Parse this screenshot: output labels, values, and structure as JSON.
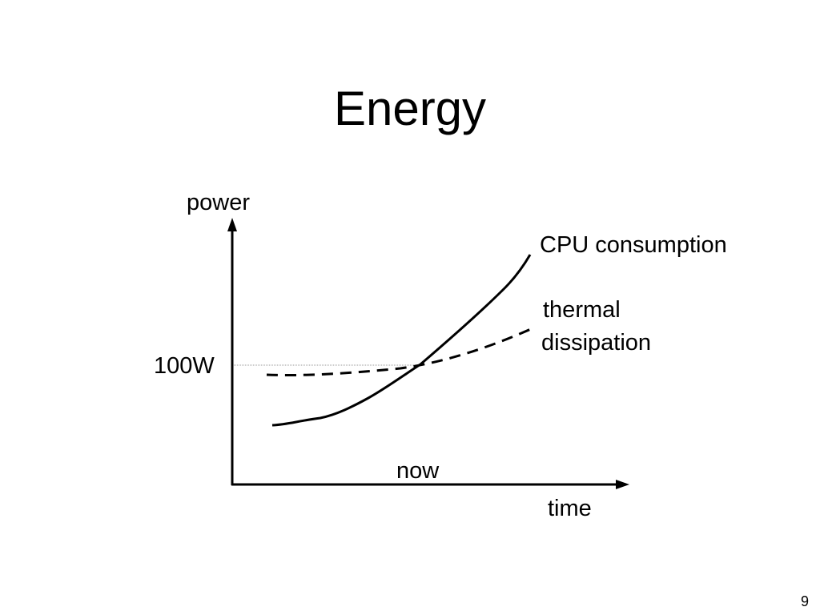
{
  "slide": {
    "title": "Energy",
    "page_number": "9"
  },
  "diagram": {
    "y_axis_label": "power",
    "x_axis_label": "time",
    "level_label": "100W",
    "now_label": "now",
    "curves": [
      {
        "name": "CPU consumption",
        "style": "solid"
      },
      {
        "name": "thermal dissipation",
        "style": "dashed",
        "lines": [
          "thermal",
          "dissipation"
        ]
      }
    ]
  }
}
